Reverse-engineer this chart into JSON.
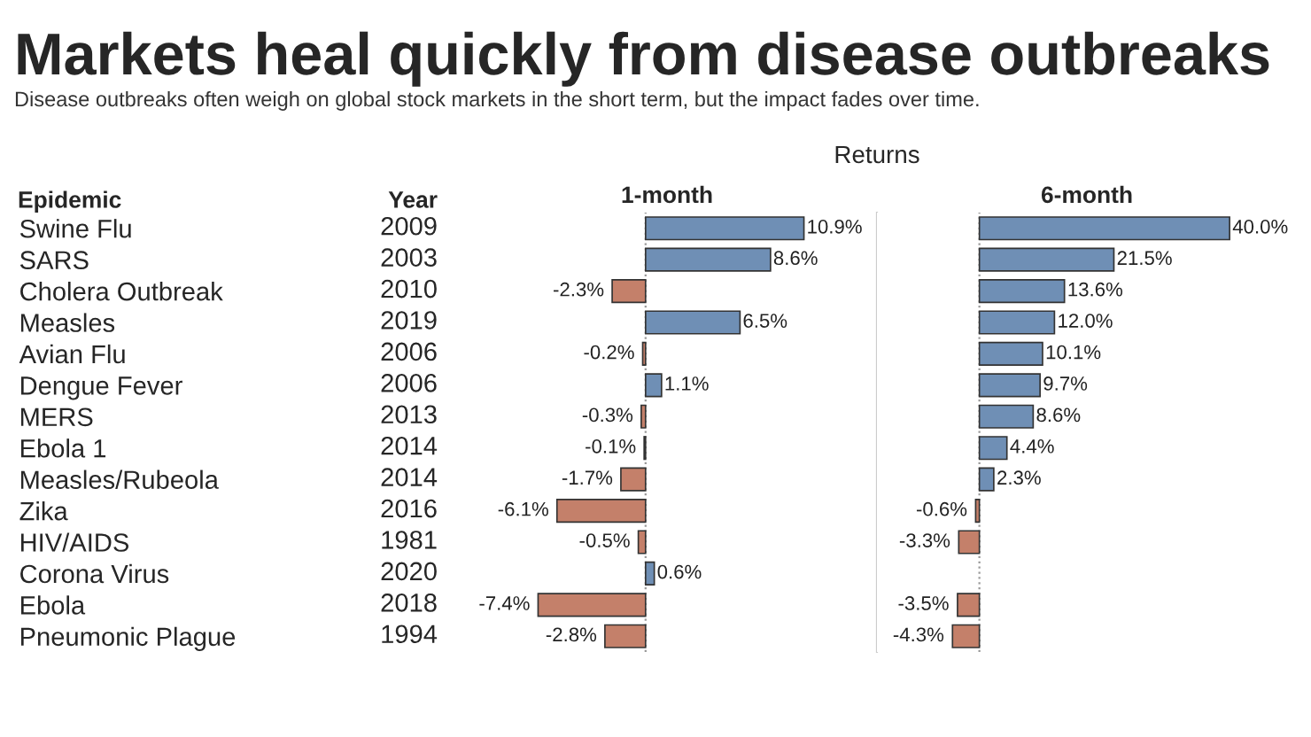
{
  "chart_data": [
    {
      "type": "bar",
      "orientation": "horizontal",
      "title": "Markets heal quickly from disease outbreaks",
      "subtitle": "Disease outbreaks often weigh on global stock markets in the short term, but the impact fades over time.",
      "ylabel": "Epidemic",
      "xlabel": "1-month",
      "tick_labels": "y",
      "categories": [
        "Swine Flu",
        "SARS",
        "Cholera Outbreak",
        "Measles",
        "Avian Flu",
        "Dengue Fever",
        "MERS",
        "Ebola 1",
        "Measles/Rubeola",
        "Zika",
        "HIV/AIDS",
        "Corona Virus",
        "Ebola",
        "Pneumonic Plague"
      ],
      "values": [
        10.9,
        8.6,
        -2.3,
        6.5,
        -0.2,
        1.1,
        -0.3,
        -0.1,
        -1.7,
        -6.1,
        -0.5,
        0.6,
        -7.4,
        -2.8
      ],
      "value_labels": [
        "10.9%",
        "8.6%",
        "-2.3%",
        "6.5%",
        "-0.2%",
        "1.1%",
        "-0.3%",
        "-0.1%",
        "-1.7%",
        "-6.1%",
        "-0.5%",
        "0.6%",
        "-7.4%",
        "-2.8%"
      ],
      "colors": [
        "#6f8fb5",
        "#6f8fb5",
        "#c4806a",
        "#6f8fb5",
        "#c4806a",
        "#6f8fb5",
        "#c4806a",
        "#c4806a",
        "#c4806a",
        "#c4806a",
        "#c4806a",
        "#6f8fb5",
        "#c4806a",
        "#c4806a"
      ],
      "annotations": [
        "Returns",
        "Year",
        "2009",
        "2003",
        "2010",
        "2019",
        "2006",
        "2006",
        "2013",
        "2014",
        "2014",
        "2016",
        "1981",
        "2020",
        "2018",
        "1994"
      ],
      "ref_lines": [
        {
          "axis": "x",
          "value": 0,
          "color": "#999999",
          "line_style": "dotted"
        }
      ]
    },
    {
      "type": "bar",
      "orientation": "horizontal",
      "xlabel": "6-month",
      "tick_labels": false,
      "categories": [
        null,
        null,
        null,
        null,
        null,
        null,
        null,
        null,
        null,
        null,
        null,
        null,
        null,
        null
      ],
      "values": [
        40.0,
        21.5,
        13.6,
        12.0,
        10.1,
        9.7,
        8.6,
        4.4,
        2.3,
        -0.6,
        -3.3,
        null,
        -3.5,
        -4.3
      ],
      "value_labels": [
        "40.0%",
        "21.5%",
        "13.6%",
        "12.0%",
        "10.1%",
        "9.7%",
        "8.6%",
        "4.4%",
        "2.3%",
        "-0.6%",
        "-3.3%",
        null,
        "-3.5%",
        "-4.3%"
      ],
      "colors": [
        "#6f8fb5",
        "#6f8fb5",
        "#6f8fb5",
        "#6f8fb5",
        "#6f8fb5",
        "#6f8fb5",
        "#6f8fb5",
        "#6f8fb5",
        "#6f8fb5",
        "#c4806a",
        "#c4806a",
        "#c4806a",
        "#c4806a",
        "#c4806a"
      ],
      "ref_lines": [
        {
          "axis": "x",
          "value": 0,
          "color": "#999999",
          "line_style": "dotted"
        }
      ]
    }
  ]
}
